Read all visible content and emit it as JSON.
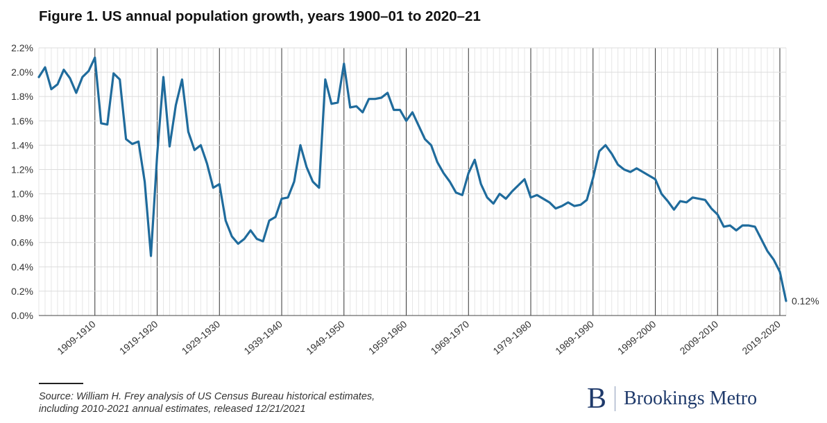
{
  "chart_data": {
    "type": "line",
    "title": "Figure 1. US annual population growth, years 1900–01 to 2020–21",
    "xlabel": "",
    "ylabel": "",
    "ylim": [
      0,
      2.2
    ],
    "y_ticks": [
      "0.0%",
      "0.2%",
      "0.4%",
      "0.6%",
      "0.8%",
      "1.0%",
      "1.2%",
      "1.4%",
      "1.6%",
      "1.8%",
      "2.0%",
      "2.2%"
    ],
    "x_tick_labels": [
      "1909-1910",
      "1919-1920",
      "1929-1930",
      "1939-1940",
      "1949-1950",
      "1959-1960",
      "1969-1970",
      "1979-1980",
      "1989-1990",
      "1999-2000",
      "2009-2010",
      "2019-2020"
    ],
    "grid": true,
    "line_color": "#1f6b9c",
    "end_label": "0.12%",
    "x": [
      "1900-1901",
      "1901-1902",
      "1902-1903",
      "1903-1904",
      "1904-1905",
      "1905-1906",
      "1906-1907",
      "1907-1908",
      "1908-1909",
      "1909-1910",
      "1910-1911",
      "1911-1912",
      "1912-1913",
      "1913-1914",
      "1914-1915",
      "1915-1916",
      "1916-1917",
      "1917-1918",
      "1918-1919",
      "1919-1920",
      "1920-1921",
      "1921-1922",
      "1922-1923",
      "1923-1924",
      "1924-1925",
      "1925-1926",
      "1926-1927",
      "1927-1928",
      "1928-1929",
      "1929-1930",
      "1930-1931",
      "1931-1932",
      "1932-1933",
      "1933-1934",
      "1934-1935",
      "1935-1936",
      "1936-1937",
      "1937-1938",
      "1938-1939",
      "1939-1940",
      "1940-1941",
      "1941-1942",
      "1942-1943",
      "1943-1944",
      "1944-1945",
      "1945-1946",
      "1946-1947",
      "1947-1948",
      "1948-1949",
      "1949-1950",
      "1950-1951",
      "1951-1952",
      "1952-1953",
      "1953-1954",
      "1954-1955",
      "1955-1956",
      "1956-1957",
      "1957-1958",
      "1958-1959",
      "1959-1960",
      "1960-1961",
      "1961-1962",
      "1962-1963",
      "1963-1964",
      "1964-1965",
      "1965-1966",
      "1966-1967",
      "1967-1968",
      "1968-1969",
      "1969-1970",
      "1970-1971",
      "1971-1972",
      "1972-1973",
      "1973-1974",
      "1974-1975",
      "1975-1976",
      "1976-1977",
      "1977-1978",
      "1978-1979",
      "1979-1980",
      "1980-1981",
      "1981-1982",
      "1982-1983",
      "1983-1984",
      "1984-1985",
      "1985-1986",
      "1986-1987",
      "1987-1988",
      "1988-1989",
      "1989-1990",
      "1990-1991",
      "1991-1992",
      "1992-1993",
      "1993-1994",
      "1994-1995",
      "1995-1996",
      "1996-1997",
      "1997-1998",
      "1998-1999",
      "1999-2000",
      "2000-2001",
      "2001-2002",
      "2002-2003",
      "2003-2004",
      "2004-2005",
      "2005-2006",
      "2006-2007",
      "2007-2008",
      "2008-2009",
      "2009-2010",
      "2010-2011",
      "2011-2012",
      "2012-2013",
      "2013-2014",
      "2014-2015",
      "2015-2016",
      "2016-2017",
      "2017-2018",
      "2018-2019",
      "2019-2020",
      "2020-2021"
    ],
    "series": [
      {
        "values": [
          1.96,
          2.04,
          1.86,
          1.9,
          2.02,
          1.95,
          1.83,
          1.96,
          2.01,
          2.12,
          1.58,
          1.57,
          1.99,
          1.94,
          1.45,
          1.41,
          1.43,
          1.1,
          0.49,
          1.32,
          1.96,
          1.39,
          1.73,
          1.94,
          1.51,
          1.36,
          1.4,
          1.25,
          1.05,
          1.08,
          0.78,
          0.65,
          0.59,
          0.63,
          0.7,
          0.63,
          0.61,
          0.78,
          0.81,
          0.96,
          0.97,
          1.1,
          1.4,
          1.22,
          1.1,
          1.05,
          1.94,
          1.74,
          1.75,
          2.07,
          1.71,
          1.72,
          1.67,
          1.78,
          1.78,
          1.79,
          1.83,
          1.69,
          1.69,
          1.6,
          1.67,
          1.56,
          1.45,
          1.4,
          1.26,
          1.17,
          1.1,
          1.01,
          0.99,
          1.17,
          1.28,
          1.08,
          0.97,
          0.92,
          1.0,
          0.96,
          1.02,
          1.07,
          1.12,
          0.97,
          0.99,
          0.96,
          0.93,
          0.88,
          0.9,
          0.93,
          0.9,
          0.91,
          0.95,
          1.13,
          1.35,
          1.4,
          1.33,
          1.24,
          1.2,
          1.18,
          1.21,
          1.18,
          1.15,
          1.12,
          1.0,
          0.94,
          0.87,
          0.94,
          0.93,
          0.97,
          0.96,
          0.95,
          0.88,
          0.83,
          0.73,
          0.74,
          0.7,
          0.74,
          0.74,
          0.73,
          0.63,
          0.53,
          0.46,
          0.36,
          0.12
        ]
      }
    ]
  },
  "footer": {
    "source": "Source: William H. Frey analysis of US Census Bureau historical estimates, including 2010-2021 annual estimates, released 12/21/2021",
    "logo_mark": "B",
    "logo_text": "Brookings Metro"
  }
}
